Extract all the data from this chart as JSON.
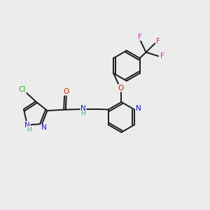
{
  "bg_color": "#ececec",
  "bond_color": "#1a1a1a",
  "bond_width": 1.4,
  "atom_colors": {
    "N": "#1111cc",
    "O": "#cc2200",
    "Cl": "#22aa22",
    "F": "#cc22cc",
    "H_label": "#559999",
    "C": "#1a1a1a"
  },
  "font_size_atom": 7.5,
  "font_size_small": 6.5
}
